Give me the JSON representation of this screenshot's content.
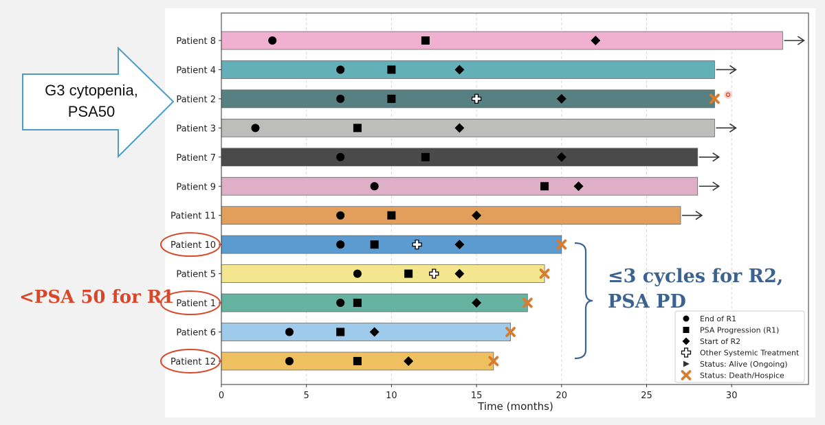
{
  "chart_data": {
    "type": "bar",
    "orientation": "horizontal",
    "xlabel": "Time (months)",
    "xlim": [
      0,
      35
    ],
    "xticks": [
      0,
      5,
      10,
      15,
      20,
      25,
      30
    ],
    "grid": "vertical-dashed",
    "legend_position": "bottom-right",
    "patients": [
      {
        "label": "Patient 8",
        "duration": 33,
        "color": "#f0b1d0",
        "status": "alive",
        "end_r1": 3,
        "psa_progression": 12,
        "start_r2": 22,
        "other_systemic": null,
        "circled": false
      },
      {
        "label": "Patient 4",
        "duration": 29,
        "color": "#63b0b9",
        "status": "alive",
        "end_r1": 7,
        "psa_progression": 10,
        "start_r2": 14,
        "other_systemic": null,
        "circled": false
      },
      {
        "label": "Patient 2",
        "duration": 29,
        "color": "#578083",
        "status": "death",
        "end_r1": 7,
        "psa_progression": 10,
        "start_r2": 20,
        "other_systemic": 15,
        "circled": false
      },
      {
        "label": "Patient 3",
        "duration": 29,
        "color": "#bdbdbc",
        "status": "alive",
        "end_r1": 2,
        "psa_progression": 8,
        "start_r2": 14,
        "other_systemic": null,
        "circled": false
      },
      {
        "label": "Patient 7",
        "duration": 28,
        "color": "#4a4a4a",
        "status": "alive",
        "end_r1": 7,
        "psa_progression": 12,
        "start_r2": 20,
        "other_systemic": null,
        "circled": false
      },
      {
        "label": "Patient 9",
        "duration": 28,
        "color": "#dfaec7",
        "status": "alive",
        "end_r1": 9,
        "psa_progression": 19,
        "start_r2": 21,
        "other_systemic": null,
        "circled": false
      },
      {
        "label": "Patient 11",
        "duration": 27,
        "color": "#e19f5b",
        "status": "alive",
        "end_r1": 7,
        "psa_progression": 10,
        "start_r2": 15,
        "other_systemic": null,
        "circled": false
      },
      {
        "label": "Patient 10",
        "duration": 20,
        "color": "#5b9bcf",
        "status": "death",
        "end_r1": 7,
        "psa_progression": 9,
        "start_r2": 14,
        "other_systemic": 11.5,
        "circled": true
      },
      {
        "label": "Patient 5",
        "duration": 19,
        "color": "#f3e68e",
        "status": "death",
        "end_r1": 8,
        "psa_progression": 11,
        "start_r2": 14,
        "other_systemic": 12.5,
        "circled": false
      },
      {
        "label": "Patient 1",
        "duration": 18,
        "color": "#66b2a1",
        "status": "death",
        "end_r1": 7,
        "psa_progression": 8,
        "start_r2": 15,
        "other_systemic": null,
        "circled": true
      },
      {
        "label": "Patient 6",
        "duration": 17,
        "color": "#9ecaec",
        "status": "death",
        "end_r1": 4,
        "psa_progression": 7,
        "start_r2": 9,
        "other_systemic": null,
        "circled": false
      },
      {
        "label": "Patient 12",
        "duration": 16,
        "color": "#eec060",
        "status": "death",
        "end_r1": 4,
        "psa_progression": 8,
        "start_r2": 11,
        "other_systemic": null,
        "circled": true
      }
    ],
    "legend": [
      {
        "marker": "circle",
        "label": "End of R1"
      },
      {
        "marker": "square",
        "label": "PSA Progression (R1)"
      },
      {
        "marker": "diamond",
        "label": "Start of R2"
      },
      {
        "marker": "plus",
        "label": "Other Systemic Treatment"
      },
      {
        "marker": "triangle",
        "label": "Status: Alive (Ongoing)"
      },
      {
        "marker": "x",
        "label": "Status: Death/Hospice"
      }
    ]
  },
  "annotations": {
    "arrow_text_line1": "G3 cytopenia,",
    "arrow_text_line2": "PSA50",
    "left_text": "<PSA 50 for R1",
    "right_text_line1": "≤3 cycles for R2,",
    "right_text_line2": "PSA PD"
  },
  "colors": {
    "arrow_border": "#4b9cc9",
    "circle_annotation": "#d9472b",
    "death_marker": "#d97c2e",
    "brace": "#3c6390",
    "right_text": "#3c6390",
    "left_text": "#d9472b"
  }
}
